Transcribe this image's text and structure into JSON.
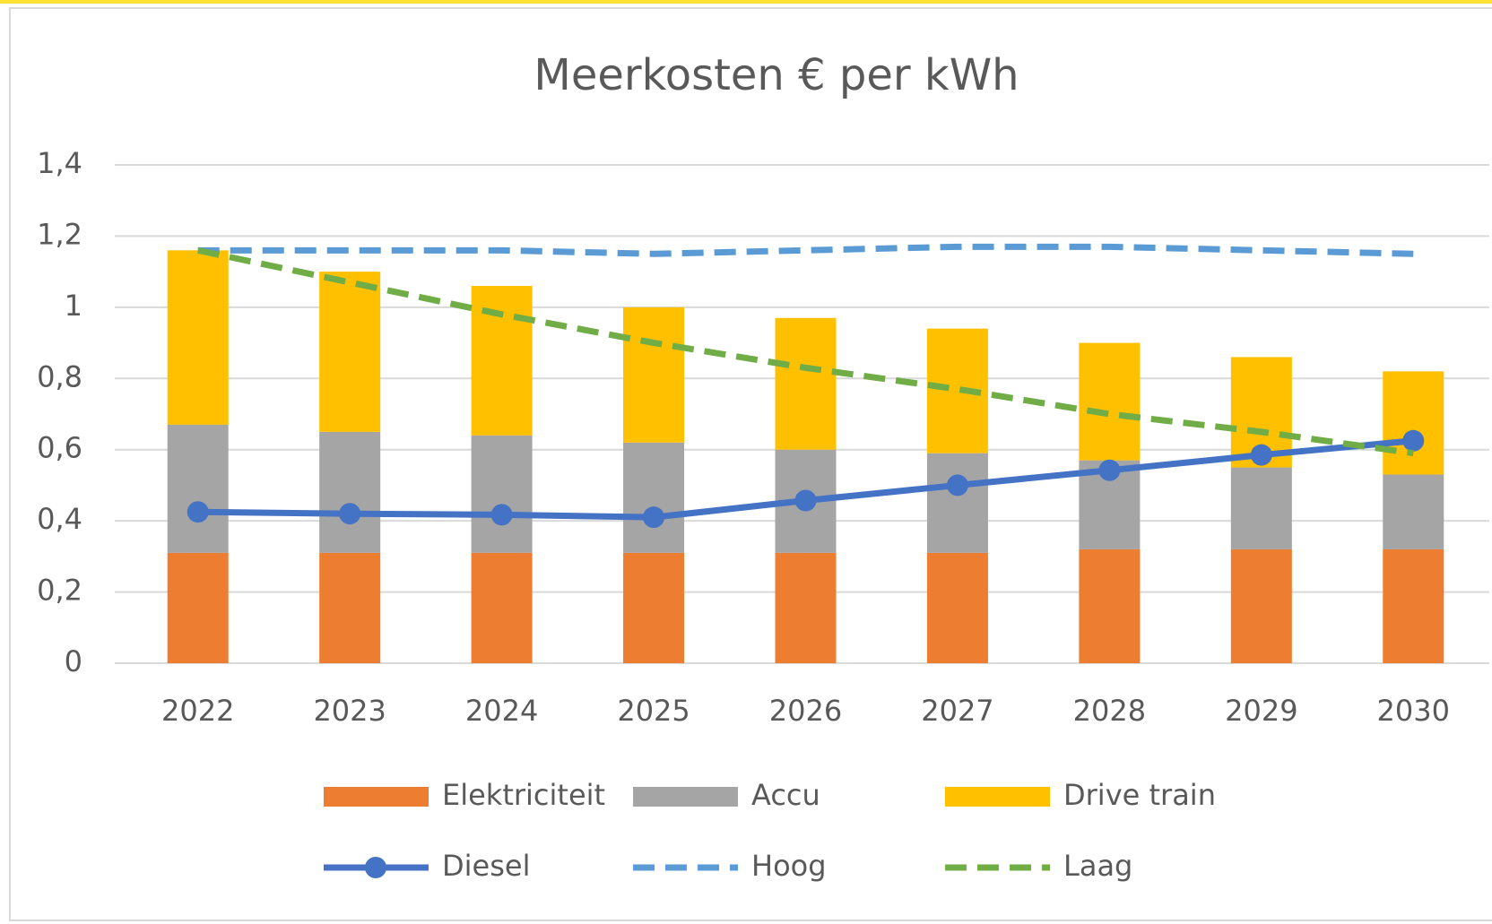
{
  "chart_data": {
    "type": "bar",
    "title": "Meerkosten € per kWh",
    "categories": [
      "2022",
      "2023",
      "2024",
      "2025",
      "2026",
      "2027",
      "2028",
      "2029",
      "2030"
    ],
    "series": [
      {
        "name": "Elektriciteit",
        "type": "bar",
        "color": "#ed7d31",
        "values": [
          0.31,
          0.31,
          0.31,
          0.31,
          0.31,
          0.31,
          0.32,
          0.32,
          0.32
        ]
      },
      {
        "name": "Accu",
        "type": "bar",
        "color": "#a5a5a5",
        "values": [
          0.36,
          0.34,
          0.33,
          0.31,
          0.29,
          0.28,
          0.25,
          0.23,
          0.21
        ]
      },
      {
        "name": "Drive train",
        "type": "bar",
        "color": "#ffc000",
        "values": [
          0.49,
          0.45,
          0.42,
          0.38,
          0.37,
          0.35,
          0.33,
          0.31,
          0.29
        ]
      },
      {
        "name": "Diesel",
        "type": "line",
        "color": "#4472c4",
        "style": "solid",
        "marker": "circle",
        "values": [
          0.425,
          0.42,
          0.417,
          0.41,
          0.457,
          0.5,
          0.542,
          0.585,
          0.625
        ]
      },
      {
        "name": "Hoog",
        "type": "line",
        "color": "#5b9bd5",
        "style": "dashed",
        "values": [
          1.16,
          1.16,
          1.16,
          1.15,
          1.16,
          1.17,
          1.17,
          1.16,
          1.15
        ]
      },
      {
        "name": "Laag",
        "type": "line",
        "color": "#70ad47",
        "style": "dashed",
        "values": [
          1.16,
          1.07,
          0.98,
          0.9,
          0.83,
          0.77,
          0.7,
          0.65,
          0.59
        ]
      }
    ],
    "stacked": true,
    "ylim": [
      0,
      1.4
    ],
    "yticks": [
      0,
      {
        "value": 0.2,
        "label": "0,2"
      },
      {
        "value": 0.4,
        "label": "0,4"
      },
      {
        "value": 0.6,
        "label": "0,6"
      },
      {
        "value": 0.8,
        "label": "0,8"
      },
      1,
      {
        "value": 1.2,
        "label": "1,2"
      },
      {
        "value": 1.4,
        "label": "1,4"
      }
    ],
    "grid": true,
    "legend": "bottom"
  }
}
